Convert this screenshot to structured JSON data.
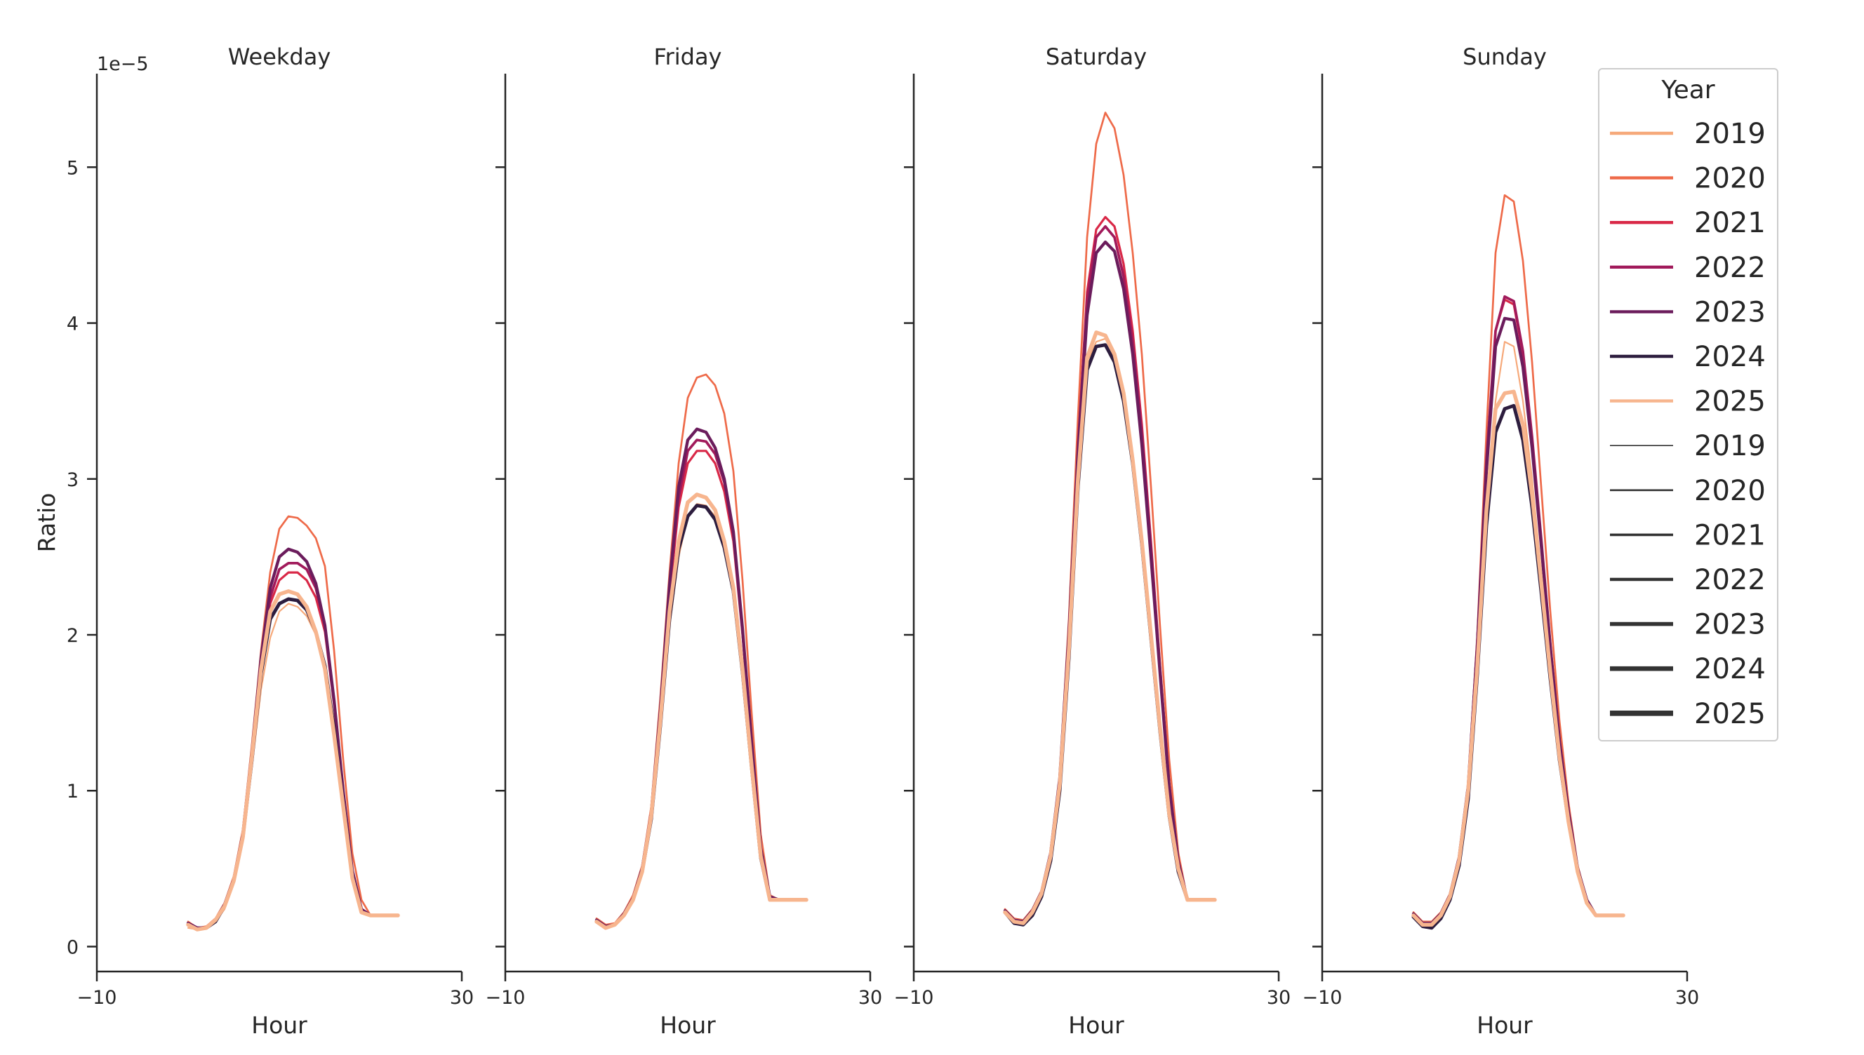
{
  "chart_data": {
    "type": "line",
    "y_offset_label": "1e−5",
    "ylabel": "Ratio",
    "xlabel": "Hour",
    "xlim": [
      -10,
      30
    ],
    "ylim": [
      -0.16,
      5.6
    ],
    "x_ticks": [
      -10,
      30
    ],
    "x_tick_labels": [
      "−10",
      "30"
    ],
    "y_ticks": [
      0,
      1,
      2,
      3,
      4,
      5
    ],
    "y_tick_labels": [
      "0",
      "1",
      "2",
      "3",
      "4",
      "5"
    ],
    "grid": false,
    "legend_position": "upper-right",
    "legend": {
      "title": "Year",
      "hue_entries": [
        {
          "label": "2019",
          "color": "#f6a97a"
        },
        {
          "label": "2020",
          "color": "#ee6a49"
        },
        {
          "label": "2021",
          "color": "#d92847"
        },
        {
          "label": "2022",
          "color": "#a11a5b"
        },
        {
          "label": "2023",
          "color": "#6b1c5c"
        },
        {
          "label": "2024",
          "color": "#2d1d3e"
        },
        {
          "label": "2025",
          "color": "#f7b58e"
        }
      ],
      "size_entries": [
        {
          "label": "2019"
        },
        {
          "label": "2020"
        },
        {
          "label": "2021"
        },
        {
          "label": "2022"
        },
        {
          "label": "2023"
        },
        {
          "label": "2024"
        },
        {
          "label": "2025"
        }
      ]
    },
    "hours": [
      0,
      1,
      2,
      3,
      4,
      5,
      6,
      7,
      8,
      9,
      10,
      11,
      12,
      13,
      14,
      15,
      16,
      17,
      18,
      19,
      20,
      21,
      22,
      23
    ],
    "panels": [
      {
        "title": "Weekday",
        "series": [
          {
            "year": "2019",
            "values": [
              0.12,
              0.11,
              0.12,
              0.16,
              0.24,
              0.4,
              0.68,
              1.15,
              1.65,
              1.98,
              2.15,
              2.2,
              2.18,
              2.12,
              2.0,
              1.78,
              1.38,
              0.9,
              0.45,
              0.22,
              0.2,
              0.2,
              0.2,
              0.2
            ]
          },
          {
            "year": "2020",
            "values": [
              0.16,
              0.12,
              0.13,
              0.18,
              0.28,
              0.45,
              0.75,
              1.3,
              1.9,
              2.4,
              2.68,
              2.76,
              2.75,
              2.7,
              2.62,
              2.44,
              1.9,
              1.2,
              0.6,
              0.3,
              0.2,
              0.2,
              0.2,
              0.2
            ]
          },
          {
            "year": "2021",
            "values": [
              0.15,
              0.12,
              0.12,
              0.17,
              0.27,
              0.43,
              0.72,
              1.25,
              1.8,
              2.2,
              2.35,
              2.4,
              2.4,
              2.35,
              2.24,
              2.02,
              1.55,
              0.98,
              0.48,
              0.24,
              0.2,
              0.2,
              0.2,
              0.2
            ]
          },
          {
            "year": "2022",
            "values": [
              0.15,
              0.12,
              0.12,
              0.17,
              0.27,
              0.43,
              0.72,
              1.25,
              1.82,
              2.24,
              2.42,
              2.46,
              2.46,
              2.42,
              2.3,
              2.06,
              1.58,
              1.0,
              0.49,
              0.24,
              0.2,
              0.2,
              0.2,
              0.2
            ]
          },
          {
            "year": "2023",
            "values": [
              0.15,
              0.12,
              0.12,
              0.17,
              0.27,
              0.43,
              0.72,
              1.25,
              1.85,
              2.3,
              2.5,
              2.55,
              2.53,
              2.47,
              2.33,
              2.06,
              1.58,
              1.0,
              0.49,
              0.24,
              0.2,
              0.2,
              0.2,
              0.2
            ]
          },
          {
            "year": "2024",
            "values": [
              0.14,
              0.11,
              0.12,
              0.16,
              0.26,
              0.42,
              0.7,
              1.2,
              1.75,
              2.1,
              2.2,
              2.23,
              2.22,
              2.16,
              2.02,
              1.8,
              1.4,
              0.92,
              0.45,
              0.22,
              0.2,
              0.2,
              0.2,
              0.2
            ]
          },
          {
            "year": "2025",
            "values": [
              0.14,
              0.11,
              0.12,
              0.17,
              0.26,
              0.42,
              0.7,
              1.22,
              1.78,
              2.15,
              2.26,
              2.28,
              2.26,
              2.18,
              2.02,
              1.78,
              1.36,
              0.9,
              0.44,
              0.22,
              0.2,
              0.2,
              0.2,
              0.2
            ]
          }
        ]
      },
      {
        "title": "Friday",
        "series": [
          {
            "year": "2019",
            "values": [
              0.16,
              0.12,
              0.14,
              0.2,
              0.3,
              0.48,
              0.82,
              1.4,
              2.05,
              2.5,
              2.76,
              2.84,
              2.83,
              2.76,
              2.6,
              2.32,
              1.8,
              1.18,
              0.58,
              0.3,
              0.3,
              0.3,
              0.3,
              0.3
            ]
          },
          {
            "year": "2020",
            "values": [
              0.18,
              0.14,
              0.15,
              0.22,
              0.33,
              0.52,
              0.9,
              1.6,
              2.4,
              3.1,
              3.52,
              3.65,
              3.67,
              3.6,
              3.42,
              3.05,
              2.35,
              1.5,
              0.72,
              0.33,
              0.3,
              0.3,
              0.3,
              0.3
            ]
          },
          {
            "year": "2021",
            "values": [
              0.17,
              0.13,
              0.14,
              0.21,
              0.31,
              0.5,
              0.86,
              1.5,
              2.25,
              2.82,
              3.1,
              3.18,
              3.18,
              3.1,
              2.92,
              2.6,
              2.0,
              1.28,
              0.62,
              0.32,
              0.3,
              0.3,
              0.3,
              0.3
            ]
          },
          {
            "year": "2022",
            "values": [
              0.17,
              0.13,
              0.14,
              0.21,
              0.31,
              0.5,
              0.86,
              1.52,
              2.3,
              2.88,
              3.18,
              3.25,
              3.24,
              3.16,
              2.98,
              2.64,
              2.02,
              1.3,
              0.63,
              0.32,
              0.3,
              0.3,
              0.3,
              0.3
            ]
          },
          {
            "year": "2023",
            "values": [
              0.17,
              0.13,
              0.14,
              0.21,
              0.31,
              0.5,
              0.86,
              1.52,
              2.32,
              2.95,
              3.25,
              3.32,
              3.3,
              3.2,
              3.0,
              2.66,
              2.04,
              1.31,
              0.63,
              0.32,
              0.3,
              0.3,
              0.3,
              0.3
            ]
          },
          {
            "year": "2024",
            "values": [
              0.16,
              0.12,
              0.14,
              0.2,
              0.3,
              0.48,
              0.82,
              1.42,
              2.1,
              2.55,
              2.76,
              2.83,
              2.82,
              2.74,
              2.56,
              2.28,
              1.76,
              1.15,
              0.57,
              0.3,
              0.3,
              0.3,
              0.3,
              0.3
            ]
          },
          {
            "year": "2025",
            "values": [
              0.16,
              0.12,
              0.14,
              0.2,
              0.3,
              0.48,
              0.84,
              1.45,
              2.15,
              2.6,
              2.85,
              2.9,
              2.88,
              2.8,
              2.6,
              2.3,
              1.78,
              1.16,
              0.58,
              0.3,
              0.3,
              0.3,
              0.3,
              0.3
            ]
          }
        ]
      },
      {
        "title": "Saturday",
        "series": [
          {
            "year": "2019",
            "values": [
              0.22,
              0.16,
              0.15,
              0.22,
              0.34,
              0.58,
              1.05,
              1.9,
              3.0,
              3.75,
              3.88,
              3.9,
              3.78,
              3.52,
              3.12,
              2.6,
              2.0,
              1.4,
              0.85,
              0.5,
              0.3,
              0.3,
              0.3,
              0.3
            ]
          },
          {
            "year": "2020",
            "values": [
              0.24,
              0.18,
              0.17,
              0.24,
              0.36,
              0.6,
              1.1,
              2.1,
              3.4,
              4.55,
              5.15,
              5.35,
              5.25,
              4.95,
              4.45,
              3.8,
              2.95,
              2.05,
              1.2,
              0.6,
              0.3,
              0.3,
              0.3,
              0.3
            ]
          },
          {
            "year": "2021",
            "values": [
              0.23,
              0.17,
              0.16,
              0.23,
              0.35,
              0.6,
              1.08,
              2.0,
              3.2,
              4.2,
              4.6,
              4.68,
              4.62,
              4.38,
              3.95,
              3.35,
              2.6,
              1.8,
              1.05,
              0.55,
              0.3,
              0.3,
              0.3,
              0.3
            ]
          },
          {
            "year": "2022",
            "values": [
              0.23,
              0.17,
              0.16,
              0.23,
              0.35,
              0.6,
              1.08,
              2.0,
              3.2,
              4.15,
              4.55,
              4.62,
              4.55,
              4.3,
              3.88,
              3.3,
              2.56,
              1.78,
              1.04,
              0.55,
              0.3,
              0.3,
              0.3,
              0.3
            ]
          },
          {
            "year": "2023",
            "values": [
              0.23,
              0.17,
              0.16,
              0.23,
              0.35,
              0.6,
              1.08,
              2.0,
              3.15,
              4.05,
              4.45,
              4.52,
              4.46,
              4.22,
              3.8,
              3.22,
              2.5,
              1.75,
              1.02,
              0.54,
              0.3,
              0.3,
              0.3,
              0.3
            ]
          },
          {
            "year": "2024",
            "values": [
              0.22,
              0.15,
              0.14,
              0.2,
              0.32,
              0.55,
              1.0,
              1.85,
              2.95,
              3.7,
              3.85,
              3.86,
              3.75,
              3.5,
              3.1,
              2.58,
              1.98,
              1.38,
              0.84,
              0.48,
              0.3,
              0.3,
              0.3,
              0.3
            ]
          },
          {
            "year": "2025",
            "values": [
              0.22,
              0.16,
              0.15,
              0.22,
              0.34,
              0.58,
              1.04,
              1.9,
              3.0,
              3.78,
              3.94,
              3.92,
              3.8,
              3.55,
              3.12,
              2.6,
              2.0,
              1.4,
              0.85,
              0.5,
              0.3,
              0.3,
              0.3,
              0.3
            ]
          }
        ]
      },
      {
        "title": "Sunday",
        "series": [
          {
            "year": "2019",
            "values": [
              0.2,
              0.15,
              0.14,
              0.2,
              0.32,
              0.55,
              1.0,
              1.8,
              2.8,
              3.5,
              3.88,
              3.85,
              3.5,
              3.0,
              2.4,
              1.8,
              1.25,
              0.82,
              0.5,
              0.3,
              0.2,
              0.2,
              0.2,
              0.2
            ]
          },
          {
            "year": "2020",
            "values": [
              0.22,
              0.16,
              0.16,
              0.22,
              0.34,
              0.58,
              1.05,
              2.0,
              3.3,
              4.45,
              4.82,
              4.78,
              4.4,
              3.75,
              2.95,
              2.15,
              1.45,
              0.92,
              0.52,
              0.3,
              0.2,
              0.2,
              0.2,
              0.2
            ]
          },
          {
            "year": "2021",
            "values": [
              0.21,
              0.15,
              0.15,
              0.21,
              0.33,
              0.57,
              1.03,
              1.95,
              3.1,
              3.95,
              4.15,
              4.12,
              3.8,
              3.25,
              2.6,
              1.92,
              1.32,
              0.86,
              0.5,
              0.3,
              0.2,
              0.2,
              0.2,
              0.2
            ]
          },
          {
            "year": "2022",
            "values": [
              0.21,
              0.15,
              0.15,
              0.21,
              0.33,
              0.57,
              1.03,
              1.95,
              3.12,
              3.95,
              4.17,
              4.14,
              3.82,
              3.27,
              2.62,
              1.94,
              1.33,
              0.87,
              0.5,
              0.3,
              0.2,
              0.2,
              0.2,
              0.2
            ]
          },
          {
            "year": "2023",
            "values": [
              0.21,
              0.15,
              0.15,
              0.21,
              0.33,
              0.57,
              1.03,
              1.92,
              3.05,
              3.85,
              4.03,
              4.02,
              3.72,
              3.2,
              2.58,
              1.92,
              1.32,
              0.86,
              0.5,
              0.3,
              0.2,
              0.2,
              0.2,
              0.2
            ]
          },
          {
            "year": "2024",
            "values": [
              0.19,
              0.13,
              0.12,
              0.18,
              0.3,
              0.52,
              0.95,
              1.75,
              2.7,
              3.3,
              3.45,
              3.47,
              3.25,
              2.82,
              2.28,
              1.72,
              1.2,
              0.8,
              0.48,
              0.28,
              0.2,
              0.2,
              0.2,
              0.2
            ]
          },
          {
            "year": "2025",
            "values": [
              0.2,
              0.14,
              0.14,
              0.2,
              0.32,
              0.55,
              1.0,
              1.8,
              2.8,
              3.45,
              3.55,
              3.56,
              3.35,
              2.9,
              2.34,
              1.76,
              1.22,
              0.8,
              0.48,
              0.28,
              0.2,
              0.2,
              0.2,
              0.2
            ]
          }
        ]
      }
    ]
  }
}
